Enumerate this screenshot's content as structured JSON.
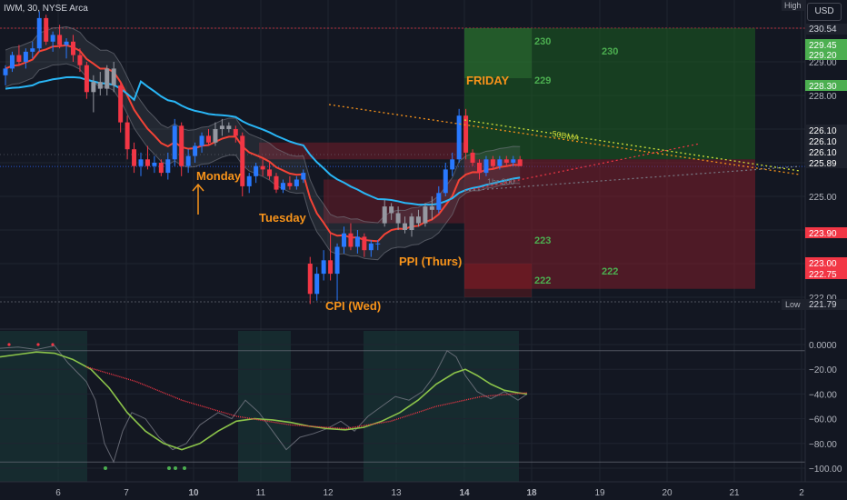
{
  "header": {
    "symbol": "IWM, 30, NYSE Arca",
    "currency": "USD"
  },
  "chart_data": {
    "type": "candlestick",
    "price_axis": {
      "range": [
        221.2,
        230.7
      ],
      "ticks": [
        "230.00",
        "229.00",
        "228.00",
        "227.00",
        "226.00",
        "225.00",
        "224.00",
        "223.00",
        "222.00"
      ],
      "tag_high_label": "High",
      "tag_low_label": "Low"
    },
    "price_tags": [
      {
        "value": "229.45",
        "color": "#4caf50"
      },
      {
        "value": "229.20",
        "color": "#4caf50"
      },
      {
        "value": "228.30",
        "color": "#4caf50"
      },
      {
        "value": "226.10",
        "color": "#1e222d"
      },
      {
        "value": "226.10",
        "color": "#1e222d"
      },
      {
        "value": "226.10",
        "color": "#1e222d"
      },
      {
        "value": "225.89",
        "color": "#1e222d"
      },
      {
        "value": "223.90",
        "color": "#f23645"
      },
      {
        "value": "223.00",
        "color": "#f23645"
      },
      {
        "value": "222.75",
        "color": "#f23645"
      },
      {
        "value": "230.54",
        "color": "#1e222d"
      },
      {
        "value": "221.79",
        "color": "#1e222d"
      }
    ],
    "x_axis": {
      "labels": [
        "6",
        "7",
        "10",
        "11",
        "12",
        "13",
        "14",
        "18",
        "19",
        "20",
        "21",
        "2"
      ]
    },
    "candles": [
      [
        228.6,
        228.9,
        228.3,
        228.8
      ],
      [
        228.8,
        229.3,
        228.7,
        229.2
      ],
      [
        229.2,
        229.5,
        228.9,
        229.0
      ],
      [
        229.0,
        229.4,
        228.8,
        229.3
      ],
      [
        229.3,
        229.6,
        229.1,
        229.4
      ],
      [
        229.4,
        230.5,
        229.3,
        230.3
      ],
      [
        230.3,
        230.4,
        229.5,
        229.6
      ],
      [
        229.6,
        229.9,
        229.3,
        229.8
      ],
      [
        229.8,
        230.1,
        229.4,
        229.5
      ],
      [
        229.5,
        229.7,
        229.1,
        229.6
      ],
      [
        229.6,
        229.8,
        229.0,
        229.2
      ],
      [
        229.2,
        229.4,
        228.7,
        228.9
      ],
      [
        228.9,
        229.0,
        227.9,
        228.1
      ],
      [
        228.1,
        228.6,
        227.5,
        228.4
      ],
      [
        228.4,
        228.7,
        228.0,
        228.2
      ],
      [
        228.2,
        228.9,
        228.0,
        228.8
      ],
      [
        228.8,
        229.0,
        228.1,
        228.3
      ],
      [
        228.3,
        228.4,
        226.9,
        227.2
      ],
      [
        227.2,
        227.4,
        226.1,
        226.4
      ],
      [
        226.4,
        226.6,
        225.7,
        225.9
      ],
      [
        225.9,
        226.3,
        225.6,
        226.1
      ],
      [
        226.1,
        226.5,
        225.8,
        225.9
      ],
      [
        225.9,
        226.2,
        225.7,
        226.0
      ],
      [
        226.0,
        226.1,
        225.6,
        225.7
      ],
      [
        225.7,
        226.3,
        225.5,
        226.1
      ],
      [
        226.1,
        227.3,
        225.9,
        227.1
      ],
      [
        227.1,
        227.2,
        225.6,
        225.9
      ],
      [
        225.9,
        226.4,
        225.7,
        226.2
      ],
      [
        226.2,
        226.6,
        226.0,
        226.5
      ],
      [
        226.5,
        226.9,
        226.3,
        226.8
      ],
      [
        226.8,
        227.0,
        226.5,
        226.6
      ],
      [
        226.6,
        227.2,
        226.5,
        227.0
      ],
      [
        227.0,
        227.3,
        226.8,
        227.1
      ],
      [
        227.1,
        227.2,
        226.9,
        227.0
      ],
      [
        227.0,
        227.1,
        226.6,
        226.8
      ],
      [
        226.8,
        226.9,
        225.0,
        225.3
      ],
      [
        225.3,
        225.7,
        225.1,
        225.6
      ],
      [
        225.6,
        226.0,
        225.4,
        225.9
      ],
      [
        225.9,
        226.1,
        225.6,
        225.8
      ],
      [
        225.8,
        226.0,
        225.5,
        225.6
      ],
      [
        225.6,
        225.7,
        225.1,
        225.2
      ],
      [
        225.2,
        225.5,
        225.1,
        225.4
      ],
      [
        225.4,
        225.6,
        225.2,
        225.3
      ],
      [
        225.3,
        225.6,
        225.2,
        225.5
      ],
      [
        225.5,
        225.8,
        225.4,
        225.7
      ],
      [
        223.0,
        223.2,
        221.8,
        222.1
      ],
      [
        222.1,
        222.9,
        221.9,
        222.7
      ],
      [
        222.7,
        223.4,
        222.5,
        223.1
      ],
      [
        223.1,
        223.9,
        222.5,
        222.7
      ],
      [
        222.7,
        223.6,
        221.9,
        223.5
      ],
      [
        223.5,
        224.1,
        223.3,
        223.9
      ],
      [
        223.9,
        224.2,
        223.4,
        223.5
      ],
      [
        223.5,
        224.0,
        223.3,
        223.8
      ],
      [
        223.8,
        223.9,
        223.2,
        223.4
      ],
      [
        223.4,
        223.7,
        223.2,
        223.6
      ],
      [
        223.6,
        223.7,
        223.4,
        223.6
      ],
      [
        224.2,
        224.9,
        224.1,
        224.7
      ],
      [
        224.7,
        224.8,
        224.3,
        224.5
      ],
      [
        224.5,
        224.7,
        224.0,
        224.2
      ],
      [
        224.2,
        224.4,
        223.9,
        224.0
      ],
      [
        224.0,
        224.5,
        223.8,
        224.4
      ],
      [
        224.4,
        224.6,
        224.1,
        224.2
      ],
      [
        224.2,
        224.8,
        224.1,
        224.7
      ],
      [
        224.7,
        225.0,
        224.3,
        224.6
      ],
      [
        224.6,
        225.3,
        224.5,
        225.1
      ],
      [
        225.1,
        226.0,
        225.0,
        225.8
      ],
      [
        225.8,
        226.3,
        225.6,
        226.1
      ],
      [
        226.1,
        227.6,
        226.0,
        227.4
      ],
      [
        227.4,
        227.6,
        226.1,
        226.3
      ],
      [
        226.3,
        226.4,
        225.9,
        226.0
      ],
      [
        226.0,
        226.1,
        225.5,
        225.7
      ],
      [
        225.7,
        226.2,
        225.6,
        226.1
      ],
      [
        226.1,
        226.2,
        225.8,
        225.9
      ],
      [
        225.9,
        226.2,
        225.8,
        226.1
      ],
      [
        226.1,
        226.2,
        225.9,
        226.0
      ],
      [
        226.0,
        226.2,
        225.9,
        226.1
      ],
      [
        226.1,
        226.2,
        225.9,
        225.9
      ]
    ],
    "overlays": {
      "ema_red_label": "",
      "sma_blue_label": ""
    },
    "position_zones": {
      "profit_levels": [
        "230",
        "229"
      ],
      "loss_levels": [
        "223",
        "222"
      ],
      "right_profit_level": "230",
      "right_loss_level": "222"
    },
    "annotations": [
      {
        "text": "Monday",
        "color": "#f7931a"
      },
      {
        "text": "Tuesday",
        "color": "#f7931a"
      },
      {
        "text": "CPI (Wed)",
        "color": "#f7931a"
      },
      {
        "text": "PPI (Thurs)",
        "color": "#f7931a"
      },
      {
        "text": "FRIDAY",
        "color": "#f7931a"
      },
      {
        "text": "50DMA",
        "color": "#cddc39"
      },
      {
        "text": "1hr 200",
        "color": "#787b86"
      }
    ],
    "oscillator": {
      "range": [
        -105,
        5
      ],
      "ticks": [
        "0.0000",
        "−20.00",
        "−40.00",
        "−60.00",
        "−80.00",
        "−100.00"
      ]
    }
  }
}
